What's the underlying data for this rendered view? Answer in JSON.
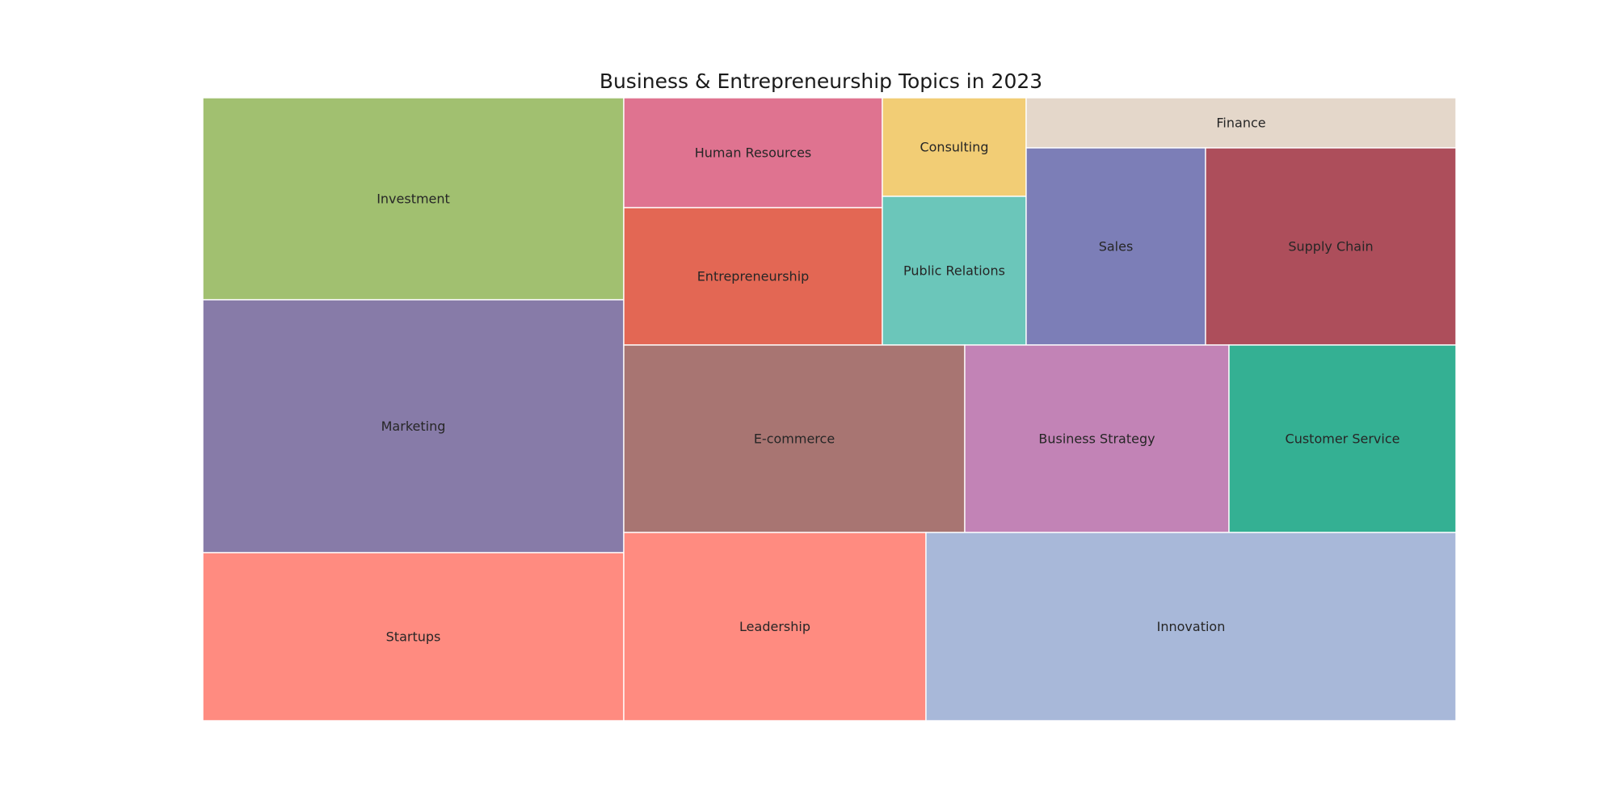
{
  "chart_data": {
    "type": "treemap",
    "title": "Business & Entrepreneurship Topics in 2023",
    "items": [
      {
        "label": "Investment",
        "color": "#a1c070"
      },
      {
        "label": "Marketing",
        "color": "#877ba8"
      },
      {
        "label": "Startups",
        "color": "#ff8b80"
      },
      {
        "label": "Human Resources",
        "color": "#df7390"
      },
      {
        "label": "Entrepreneurship",
        "color": "#e36754"
      },
      {
        "label": "Consulting",
        "color": "#f2cd75"
      },
      {
        "label": "Public Relations",
        "color": "#6bc6ba"
      },
      {
        "label": "Finance",
        "color": "#e4d7ca"
      },
      {
        "label": "Sales",
        "color": "#7c7eb7"
      },
      {
        "label": "Supply Chain",
        "color": "#ad4e5b"
      },
      {
        "label": "E-commerce",
        "color": "#a87572"
      },
      {
        "label": "Business Strategy",
        "color": "#c283b6"
      },
      {
        "label": "Customer Service",
        "color": "#34b093"
      },
      {
        "label": "Leadership",
        "color": "#ff8b80"
      },
      {
        "label": "Innovation",
        "color": "#a8b8d9"
      }
    ]
  }
}
